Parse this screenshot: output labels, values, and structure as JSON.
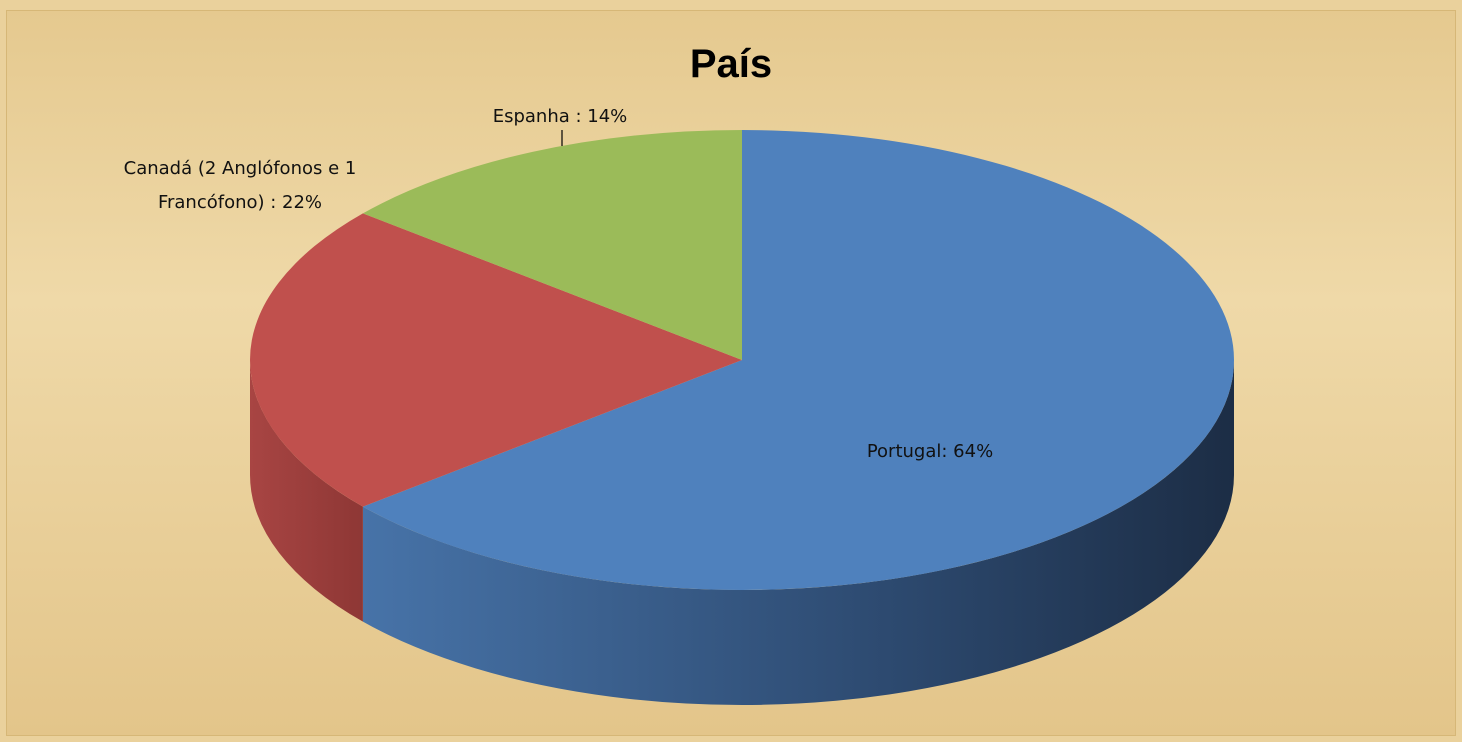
{
  "chart_data": {
    "type": "pie",
    "title": "País",
    "values": [
      64,
      22,
      14
    ],
    "value_labels": [
      "Portugal:  64%",
      "Canadá (2 Anglófonos e 1 Francófono) :  22%",
      "Espanha :  14%"
    ],
    "colors": [
      "#4f81bd",
      "#c0504d",
      "#9bbb59"
    ]
  }
}
